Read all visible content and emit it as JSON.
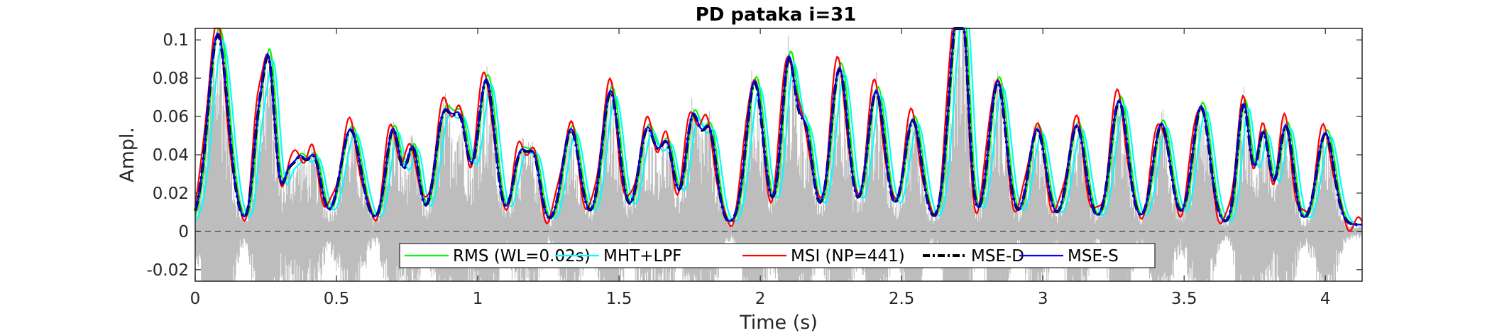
{
  "chart_data": {
    "type": "line",
    "title": "PD pataka i=31",
    "xlabel": "Time (s)",
    "ylabel": "Ampl.",
    "xlim": [
      0,
      4.13
    ],
    "ylim": [
      -0.026,
      0.106
    ],
    "xticks": [
      0,
      0.5,
      1,
      1.5,
      2,
      2.5,
      3,
      3.5,
      4
    ],
    "xtick_labels": [
      "0",
      "0.5",
      "1",
      "1.5",
      "2",
      "2.5",
      "3",
      "3.5",
      "4"
    ],
    "yticks": [
      -0.02,
      0,
      0.02,
      0.04,
      0.06,
      0.08,
      0.1
    ],
    "ytick_labels": [
      "-0.02",
      "0",
      "0.02",
      "0.04",
      "0.06",
      "0.08",
      "0.1"
    ],
    "grid": false,
    "zero_line": {
      "y": 0,
      "style": "dashed",
      "color": "#555555"
    },
    "legend": {
      "placement": "bottom-center",
      "orientation": "horizontal"
    },
    "background_signal": {
      "name": "",
      "color": "#bdbdbd"
    },
    "envelope_peaks": {
      "t": [
        0.08,
        0.22,
        0.26,
        0.33,
        0.37,
        0.42,
        0.55,
        0.7,
        0.77,
        0.88,
        0.94,
        1.03,
        1.15,
        1.2,
        1.33,
        1.47,
        1.6,
        1.67,
        1.76,
        1.82,
        1.98,
        2.1,
        2.16,
        2.28,
        2.41,
        2.54,
        2.69,
        2.72,
        2.84,
        2.98,
        3.12,
        3.27,
        3.42,
        3.56,
        3.71,
        3.78,
        3.86,
        4.0
      ],
      "a": [
        0.1,
        0.04,
        0.085,
        0.025,
        0.028,
        0.035,
        0.05,
        0.05,
        0.04,
        0.057,
        0.048,
        0.076,
        0.036,
        0.032,
        0.05,
        0.07,
        0.05,
        0.04,
        0.055,
        0.048,
        0.075,
        0.085,
        0.048,
        0.082,
        0.07,
        0.055,
        0.09,
        0.06,
        0.075,
        0.05,
        0.052,
        0.065,
        0.053,
        0.062,
        0.063,
        0.048,
        0.052,
        0.048
      ],
      "w": [
        0.035,
        0.018,
        0.022,
        0.02,
        0.02,
        0.025,
        0.035,
        0.025,
        0.022,
        0.03,
        0.025,
        0.03,
        0.025,
        0.022,
        0.03,
        0.03,
        0.03,
        0.025,
        0.025,
        0.025,
        0.03,
        0.025,
        0.025,
        0.03,
        0.03,
        0.03,
        0.028,
        0.02,
        0.03,
        0.03,
        0.03,
        0.03,
        0.03,
        0.03,
        0.022,
        0.022,
        0.025,
        0.03
      ]
    },
    "series": [
      {
        "name": "RMS (WL=0.02s)",
        "color": "#00ff00",
        "style": "solid",
        "shift": 0.006,
        "scale": 1.03
      },
      {
        "name": "MHT+LPF",
        "color": "#00ffff",
        "style": "solid",
        "shift": 0.018,
        "scale": 0.96
      },
      {
        "name": "MSI (NP=441)",
        "color": "#ff0000",
        "style": "solid",
        "shift": -0.004,
        "scale": 1.04
      },
      {
        "name": "MSE-D",
        "color": "#000000",
        "style": "dash-dot",
        "shift": 0.0,
        "scale": 0.99
      },
      {
        "name": "MSE-S",
        "color": "#0000ff",
        "style": "solid",
        "shift": 0.0,
        "scale": 1.0
      }
    ]
  }
}
